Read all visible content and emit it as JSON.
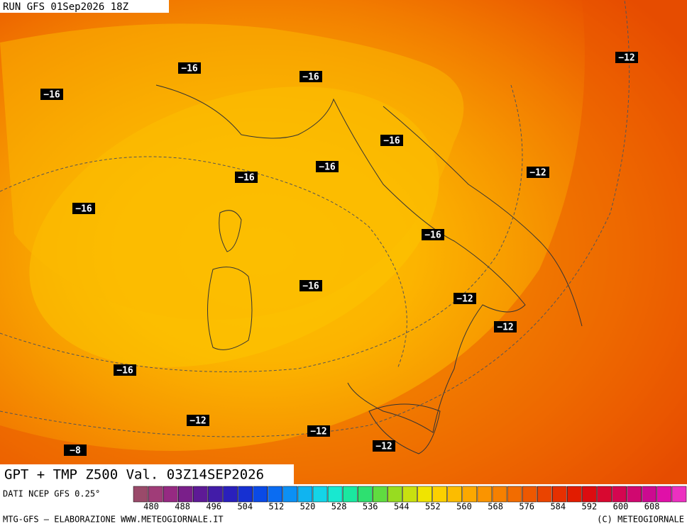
{
  "header": {
    "run": "RUN GFS 01Sep2026 18Z"
  },
  "contour_labels": [
    "−16",
    "−16",
    "−16",
    "−12",
    "−16",
    "−16",
    "−16",
    "−12",
    "−16",
    "−16",
    "−16",
    "−12",
    "−12",
    "−16",
    "−12",
    "−12",
    "−12",
    "−8"
  ],
  "footer": {
    "title": "GPT + TMP Z500 Val. 03Z14SEP2026",
    "source": "DATI NCEP GFS 0.25°",
    "credit_left": "MTG-GFS — ELABORAZIONE WWW.METEOGIORNALE.IT",
    "credit_right": "(C) METEOGIORNALE"
  },
  "colorbar": {
    "labels": [
      480,
      488,
      496,
      504,
      512,
      520,
      528,
      536,
      544,
      552,
      560,
      568,
      576,
      584,
      592,
      600,
      608
    ]
  }
}
